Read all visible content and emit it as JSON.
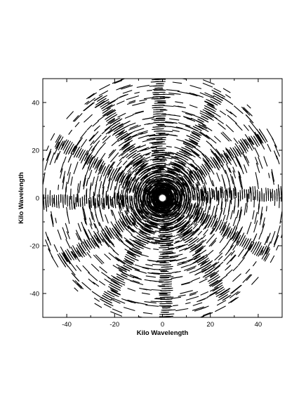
{
  "chart_data": {
    "type": "scatter",
    "title": "",
    "xlabel": "Kilo Wavelength",
    "ylabel": "Kilo Wavelength",
    "xlim": [
      -50,
      50
    ],
    "ylim": [
      -50,
      50
    ],
    "xticks": [
      -40,
      -20,
      0,
      20,
      40
    ],
    "yticks": [
      -40,
      -20,
      0,
      20,
      40
    ],
    "xtick_labels": [
      "-40",
      "-20",
      "0",
      "20",
      "40"
    ],
    "ytick_labels": [
      "-40",
      "-20",
      "0",
      "20",
      "40"
    ],
    "grid": false,
    "legend": "none",
    "mark_style": "short black arc dashes (uv-plane coverage tracks), point-symmetric about the origin",
    "mark_color": "#000000",
    "center_gap_radius_klambda": 1.5,
    "max_radius_klambda": 50,
    "dense_spoke_angles_deg": [
      0,
      30,
      60,
      90,
      120,
      150,
      180,
      210,
      240,
      270,
      300,
      330
    ],
    "sample_track_segments_klambda": [
      {
        "r": 8,
        "theta_start_deg": 0,
        "theta_end_deg": 360
      },
      {
        "r": 15,
        "theta_start_deg": 0,
        "theta_end_deg": 360
      },
      {
        "r": 22,
        "theta_start_deg": 0,
        "theta_end_deg": 360
      },
      {
        "r": 30,
        "theta_start_deg": 20,
        "theta_end_deg": 160
      },
      {
        "r": 30,
        "theta_start_deg": 200,
        "theta_end_deg": 340
      },
      {
        "r": 38,
        "theta_start_deg": 30,
        "theta_end_deg": 150
      },
      {
        "r": 38,
        "theta_start_deg": 210,
        "theta_end_deg": 330
      },
      {
        "r": 46,
        "theta_start_deg": 60,
        "theta_end_deg": 120
      },
      {
        "r": 46,
        "theta_start_deg": 240,
        "theta_end_deg": 300
      }
    ]
  }
}
